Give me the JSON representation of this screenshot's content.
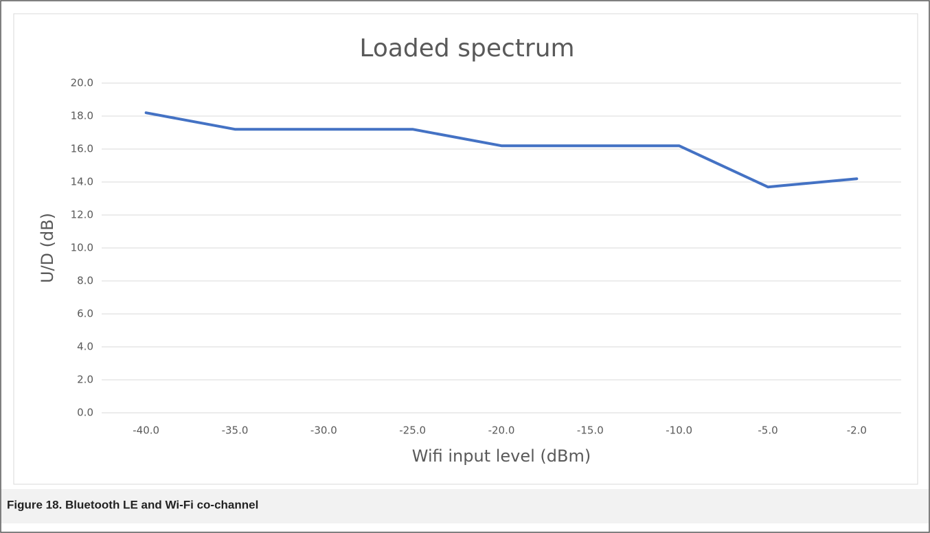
{
  "chart_data": {
    "type": "line",
    "title": "Loaded spectrum",
    "x_label": "Wifi input level (dBm)",
    "y_label": "U/D (dB)",
    "categories": [
      "-40.0",
      "-35.0",
      "-30.0",
      "-25.0",
      "-20.0",
      "-15.0",
      "-10.0",
      "-5.0",
      "-2.0"
    ],
    "values": [
      18.2,
      17.2,
      17.2,
      17.2,
      16.2,
      16.2,
      16.2,
      13.7,
      14.2
    ],
    "color": "#4472c4",
    "ylim": [
      0,
      20
    ],
    "yticks": [
      {
        "value": 0,
        "label": "0.0"
      },
      {
        "value": 2,
        "label": "2.0"
      },
      {
        "value": 4,
        "label": "4.0"
      },
      {
        "value": 6,
        "label": "6.0"
      },
      {
        "value": 8,
        "label": "8.0"
      },
      {
        "value": 10,
        "label": "10.0"
      },
      {
        "value": 12,
        "label": "12.0"
      },
      {
        "value": 14,
        "label": "14.0"
      },
      {
        "value": 16,
        "label": "16.0"
      },
      {
        "value": 18,
        "label": "18.0"
      },
      {
        "value": 20,
        "label": "20.0"
      }
    ],
    "grid": true
  },
  "caption": "Figure 18. Bluetooth LE and Wi-Fi co-channel"
}
